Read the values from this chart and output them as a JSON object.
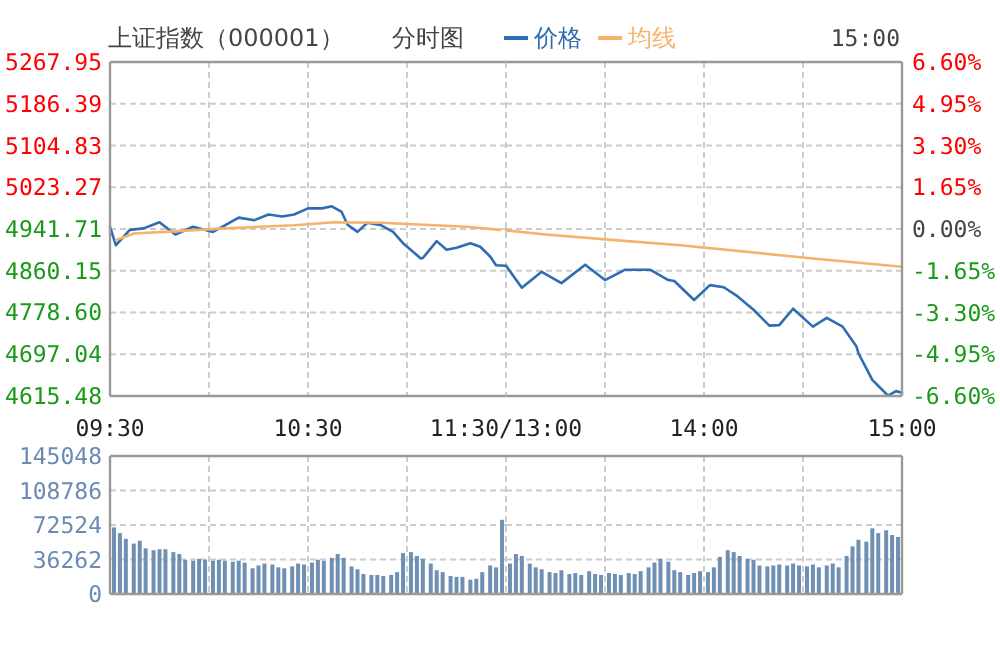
{
  "chart_data": [
    {
      "type": "line",
      "title": "上证指数（000001）",
      "subtitle": "分时图",
      "annotations": [
        "15:00"
      ],
      "xlim": [
        9.5,
        11.5
      ],
      "xticks": [
        {
          "value": 9.5,
          "label": "09:30"
        },
        {
          "value": 10,
          "label": null
        },
        {
          "value": 10.5,
          "label": "10:30"
        },
        {
          "value": 11,
          "label": null
        },
        {
          "value": 11.5,
          "label": "11:30/13:00"
        }
      ],
      "ylim": [
        4615.48,
        5267.95
      ],
      "yticks": [
        4615.48,
        4697.04,
        {
          "value": 4778.6,
          "label": "4778.60"
        },
        4860.15,
        4941.71,
        5023.27,
        5104.83,
        5186.39,
        5267.95
      ],
      "grid": true,
      "legend": "top",
      "series": [
        {
          "name": "价格",
          "color": "#2e6db4",
          "x": [
            9.5,
            9.53,
            9.6,
            9.67,
            9.75,
            9.83,
            9.92,
            10.02,
            10.08,
            10.15,
            10.23,
            10.3,
            10.37,
            10.43,
            10.5,
            10.57,
            10.62,
            10.67,
            10.7,
            10.75,
            10.8,
            10.87,
            10.93,
            10.98,
            11.07,
            11.08,
            11.15,
            11.2,
            11.25,
            11.32,
            11.37,
            11.42,
            11.45,
            11.5
          ],
          "values": [
            4946,
            4910,
            4940,
            4943,
            4955,
            4931,
            4946,
            4936,
            4949,
            4964,
            4959,
            4970,
            4966,
            4970,
            4982,
            4982,
            4986,
            4975,
            4950,
            4936,
            4954,
            4949,
            4936,
            4914,
            4884,
            4885,
            4918,
            4901,
            4905,
            4914,
            4907,
            4888,
            4871,
            4870
          ]
        },
        {
          "name": "均线",
          "color": "#f5b26b",
          "x": [
            9.53,
            9.62,
            9.82,
            10.08,
            10.43,
            10.63,
            10.87,
            11.3,
            11.47
          ],
          "values": [
            4920,
            4933,
            4937,
            4943,
            4949,
            4955,
            4954,
            4946,
            4940
          ]
        }
      ]
    },
    {
      "type": "line",
      "xlim": [
        13,
        15
      ],
      "tick_labels": "x",
      "xticks": [
        {
          "value": 13,
          "label": null
        },
        {
          "value": 13.5,
          "label": null
        },
        {
          "value": 14,
          "label": "14:00"
        },
        {
          "value": 14.5,
          "label": null
        },
        {
          "value": 15,
          "label": "15:00"
        }
      ],
      "ylim": [
        4615.48,
        5267.95
      ],
      "yticks": [
        4615.48,
        4697.04,
        4778.6,
        4860.15,
        4941.71,
        5023.27,
        5104.83,
        5186.39,
        5267.95
      ],
      "y2lim": [
        -6.6,
        6.6
      ],
      "y2ticks": [
        {
          "value": -6.6,
          "label": "-6.60%"
        },
        {
          "value": -4.95,
          "label": "-4.95%"
        },
        {
          "value": -3.3,
          "label": "-3.30%"
        },
        {
          "value": -1.65,
          "label": "-1.65%"
        },
        {
          "value": 0,
          "label": "0.00%"
        },
        {
          "value": 1.65,
          "label": "1.65%"
        },
        {
          "value": 3.3,
          "label": "3.30%"
        },
        {
          "value": 4.95,
          "label": "4.95%"
        },
        {
          "value": 6.6,
          "label": "6.60%"
        }
      ],
      "grid": true,
      "series": [
        {
          "color": "#2e6db4",
          "x": [
            13,
            13.08,
            13.18,
            13.28,
            13.4,
            13.5,
            13.6,
            13.73,
            13.82,
            13.85,
            13.95,
            14.03,
            14.1,
            14.17,
            14.25,
            14.33,
            14.38,
            14.45,
            14.55,
            14.62,
            14.7,
            14.77,
            14.78,
            14.85,
            14.93,
            14.97,
            15
          ],
          "values": [
            4870,
            4827,
            4858,
            4836,
            4872,
            4842,
            4862,
            4862,
            4842,
            4840,
            4803,
            4832,
            4828,
            4810,
            4784,
            4753,
            4754,
            4786,
            4751,
            4768,
            4751,
            4712,
            4699,
            4647,
            4616,
            4625,
            4622
          ]
        },
        {
          "color": "#f5b26b",
          "x": [
            13,
            13.2,
            13.55,
            13.88,
            14.22,
            14.55,
            15
          ],
          "values": [
            4939,
            4931,
            4920,
            4910,
            4897,
            4884,
            4868
          ]
        }
      ]
    },
    {
      "type": "bar",
      "xlim": [
        9.5,
        11.5
      ],
      "tick_labels": "y",
      "grid": true,
      "xticks": [
        {
          "value": 10,
          "label": null
        },
        {
          "value": 10.5,
          "label": null
        },
        {
          "value": 11,
          "label": null
        },
        {
          "value": 11.5,
          "label": null
        }
      ],
      "ylim": [
        0,
        145048
      ],
      "yticks": [
        0,
        36262,
        72524,
        108786,
        145048
      ],
      "x": [
        9.52,
        9.55,
        9.58,
        9.62,
        9.65,
        9.68,
        9.72,
        9.75,
        9.78,
        9.82,
        9.85,
        9.88,
        9.92,
        9.95,
        9.98,
        10.02,
        10.05,
        10.08,
        10.12,
        10.15,
        10.18,
        10.22,
        10.25,
        10.28,
        10.32,
        10.35,
        10.38,
        10.42,
        10.45,
        10.48,
        10.52,
        10.55,
        10.58,
        10.62,
        10.65,
        10.68,
        10.72,
        10.75,
        10.78,
        10.82,
        10.85,
        10.88,
        10.92,
        10.95,
        10.98,
        11.02,
        11.05,
        11.08,
        11.12,
        11.15,
        11.18,
        11.22,
        11.25,
        11.28,
        11.32,
        11.35,
        11.38,
        11.42,
        11.45,
        11.48
      ],
      "values": [
        70000,
        64000,
        58000,
        53000,
        56000,
        48000,
        46000,
        47000,
        47000,
        44000,
        42000,
        36000,
        35000,
        37000,
        36000,
        35000,
        36000,
        35000,
        34000,
        35000,
        33000,
        27000,
        30000,
        32000,
        31000,
        28000,
        27000,
        29000,
        32000,
        31000,
        33000,
        36000,
        35000,
        38000,
        42000,
        38000,
        29000,
        26000,
        21000,
        20000,
        20000,
        19000,
        20000,
        23000,
        43000,
        44000,
        40000,
        37000,
        32000,
        25000,
        23000,
        19000,
        18000,
        18000,
        15000,
        16000,
        23000,
        30000,
        28000,
        78000
      ],
      "color": "#6f8fb3"
    },
    {
      "type": "bar",
      "xlim": [
        13,
        15
      ],
      "tick_labels": false,
      "grid": true,
      "xticks": [
        {
          "value": 13.5,
          "label": null
        },
        {
          "value": 14,
          "label": null
        },
        {
          "value": 14.5,
          "label": null
        }
      ],
      "ylim": [
        0,
        145048
      ],
      "yticks": [
        0,
        36262,
        72524,
        108786,
        145048
      ],
      "x": [
        13.02,
        13.05,
        13.08,
        13.12,
        13.15,
        13.18,
        13.22,
        13.25,
        13.28,
        13.32,
        13.35,
        13.38,
        13.42,
        13.45,
        13.48,
        13.52,
        13.55,
        13.58,
        13.62,
        13.65,
        13.68,
        13.72,
        13.75,
        13.78,
        13.82,
        13.85,
        13.88,
        13.92,
        13.95,
        13.98,
        14.02,
        14.05,
        14.08,
        14.12,
        14.15,
        14.18,
        14.22,
        14.25,
        14.28,
        14.32,
        14.35,
        14.38,
        14.42,
        14.45,
        14.48,
        14.52,
        14.55,
        14.58,
        14.62,
        14.65,
        14.68,
        14.72,
        14.75,
        14.78,
        14.82,
        14.85,
        14.88,
        14.92,
        14.95,
        14.98
      ],
      "values": [
        32000,
        42000,
        40000,
        32000,
        28000,
        26000,
        23000,
        22000,
        25000,
        21000,
        22000,
        20000,
        24000,
        21000,
        20000,
        22000,
        21000,
        20000,
        22000,
        21000,
        24000,
        28000,
        33000,
        37000,
        34000,
        25000,
        23000,
        20000,
        22000,
        24000,
        23000,
        28000,
        39000,
        46000,
        44000,
        40000,
        37000,
        36000,
        30000,
        29000,
        30000,
        31000,
        30000,
        32000,
        30000,
        29000,
        31000,
        28000,
        30000,
        32000,
        28000,
        40000,
        50000,
        57000,
        55000,
        69000,
        64000,
        67000,
        62000,
        60000
      ],
      "color": "#6f8fb3"
    }
  ]
}
